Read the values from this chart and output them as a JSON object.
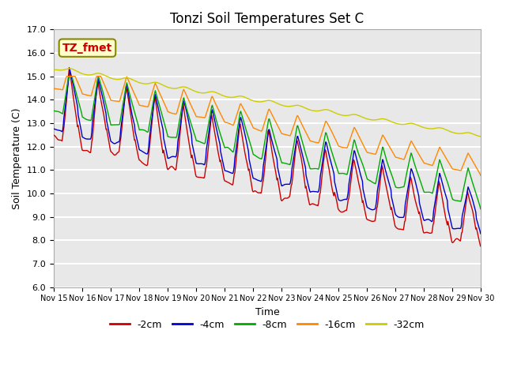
{
  "title": "Tonzi Soil Temperatures Set C",
  "xlabel": "Time",
  "ylabel": "Soil Temperature (C)",
  "ylim": [
    6.0,
    17.0
  ],
  "yticks": [
    6.0,
    7.0,
    8.0,
    9.0,
    10.0,
    11.0,
    12.0,
    13.0,
    14.0,
    15.0,
    16.0,
    17.0
  ],
  "xtick_labels": [
    "Nov 15",
    "Nov 16",
    "Nov 17",
    "Nov 18",
    "Nov 19",
    "Nov 20",
    "Nov 21",
    "Nov 22",
    "Nov 23",
    "Nov 24",
    "Nov 25",
    "Nov 26",
    "Nov 27",
    "Nov 28",
    "Nov 29",
    "Nov 30"
  ],
  "legend_entries": [
    "-2cm",
    "-4cm",
    "-8cm",
    "-16cm",
    "-32cm"
  ],
  "line_colors": [
    "#cc0000",
    "#0000cc",
    "#00aa00",
    "#ff8800",
    "#cccc00"
  ],
  "annotation_text": "TZ_fmet",
  "annotation_color": "#cc0000",
  "annotation_bg": "#ffffcc",
  "annotation_border": "#888800",
  "plot_bg_color": "#e8e8e8",
  "grid_color": "#ffffff",
  "title_fontsize": 12
}
